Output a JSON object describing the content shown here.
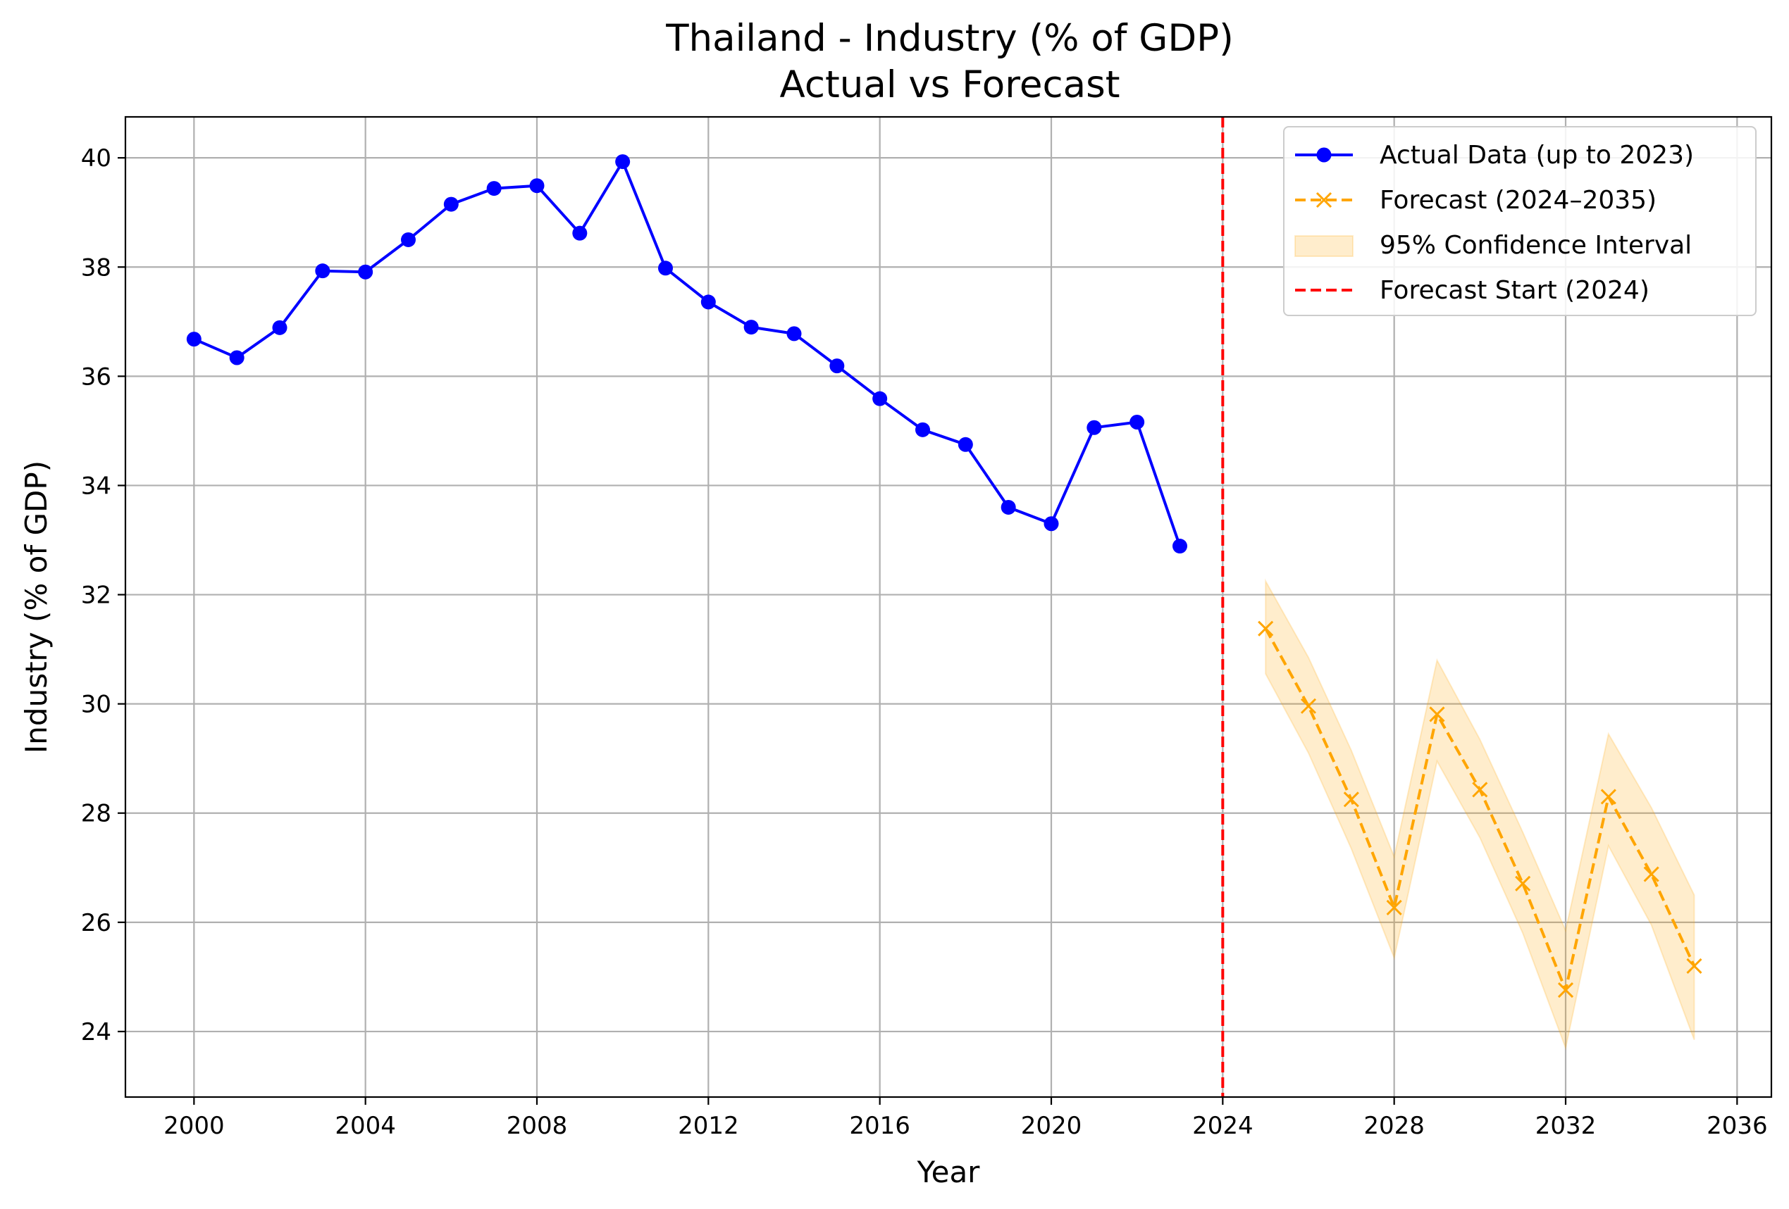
{
  "chart_data": {
    "type": "line",
    "title": "Thailand - Industry (% of GDP)",
    "subtitle": "Actual vs Forecast",
    "xlabel": "Year",
    "ylabel": "Industry (% of GDP)",
    "xlim": [
      1998.4,
      2036.8
    ],
    "ylim": [
      22.8,
      40.75
    ],
    "x_ticks": [
      2000,
      2004,
      2008,
      2012,
      2016,
      2020,
      2024,
      2028,
      2032,
      2036
    ],
    "y_ticks": [
      24,
      26,
      28,
      30,
      32,
      34,
      36,
      38,
      40
    ],
    "grid": true,
    "legend_position": "top-right",
    "series": [
      {
        "name": "Actual Data (up to 2023)",
        "color": "#0000ff",
        "line_style": "solid",
        "marker": "circle",
        "x": [
          2000,
          2001,
          2002,
          2003,
          2004,
          2005,
          2006,
          2007,
          2008,
          2009,
          2010,
          2011,
          2012,
          2013,
          2014,
          2015,
          2016,
          2017,
          2018,
          2019,
          2020,
          2021,
          2022,
          2023
        ],
        "values": [
          36.68,
          36.34,
          36.89,
          37.93,
          37.91,
          38.5,
          39.15,
          39.44,
          39.49,
          38.62,
          39.93,
          37.98,
          37.36,
          36.9,
          36.78,
          36.19,
          35.59,
          35.02,
          34.75,
          33.6,
          33.3,
          35.06,
          35.16,
          32.89
        ]
      },
      {
        "name": "Forecast (2024–2035)",
        "color": "#ffa500",
        "line_style": "dashed",
        "marker": "x",
        "x": [
          2025,
          2026,
          2027,
          2028,
          2029,
          2030,
          2031,
          2032,
          2033,
          2034,
          2035
        ],
        "values": [
          31.38,
          29.96,
          28.25,
          26.27,
          29.81,
          28.43,
          26.71,
          24.76,
          28.3,
          26.88,
          25.2
        ]
      }
    ],
    "confidence_interval": {
      "name": "95% Confidence Interval",
      "color": "#ffa500",
      "x": [
        2025,
        2026,
        2027,
        2028,
        2029,
        2030,
        2031,
        2032,
        2033,
        2034,
        2035
      ],
      "lower": [
        30.55,
        29.1,
        27.35,
        25.35,
        28.95,
        27.55,
        25.8,
        23.7,
        27.4,
        25.95,
        23.85
      ],
      "upper": [
        32.25,
        30.85,
        29.15,
        27.2,
        30.8,
        29.35,
        27.65,
        25.85,
        29.45,
        28.1,
        26.5
      ]
    },
    "vline": {
      "name": "Forecast Start (2024)",
      "x": 2024,
      "color": "#ff0000",
      "line_style": "dashed"
    }
  }
}
